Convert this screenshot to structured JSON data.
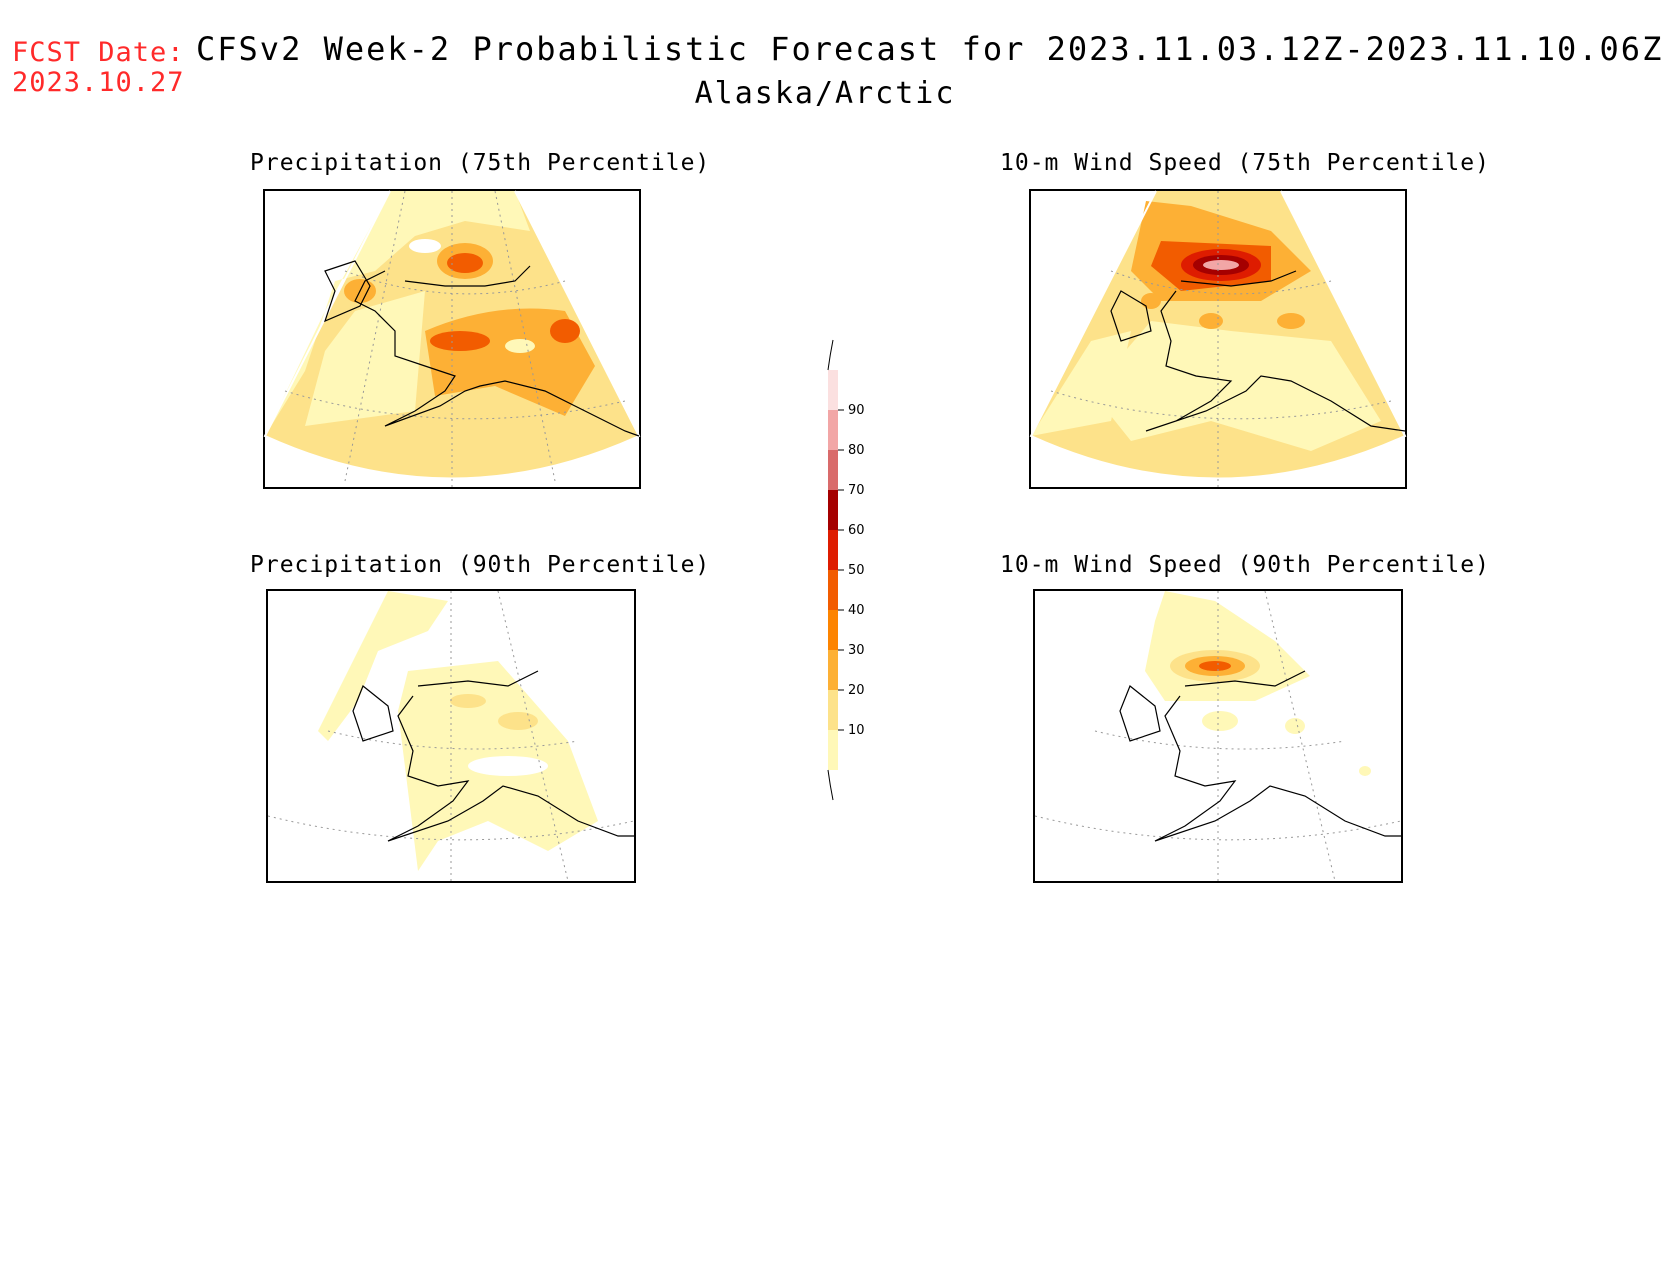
{
  "header": {
    "fcst_label": "FCST Date:",
    "fcst_date": "2023.10.27",
    "title": "CFSv2 Week-2 Probabilistic Forecast for 2023.11.03.12Z-2023.11.10.06Z",
    "region": "Alaska/Arctic"
  },
  "panels": [
    {
      "id": "precip75",
      "title": "Precipitation (75th Percentile)"
    },
    {
      "id": "wind75",
      "title": "10-m Wind Speed (75th Percentile)"
    },
    {
      "id": "precip90",
      "title": "Precipitation (90th Percentile)"
    },
    {
      "id": "wind90",
      "title": "10-m Wind Speed (90th Percentile)"
    }
  ],
  "colorbar": {
    "levels": [
      "10",
      "20",
      "30",
      "40",
      "50",
      "60",
      "70",
      "80",
      "90"
    ],
    "colors": [
      "#fff8b8",
      "#fde28a",
      "#fdb035",
      "#fd8400",
      "#f25c00",
      "#de1c00",
      "#a50000",
      "#d96b6b",
      "#f2a6a6",
      "#fbe0e0"
    ]
  }
}
